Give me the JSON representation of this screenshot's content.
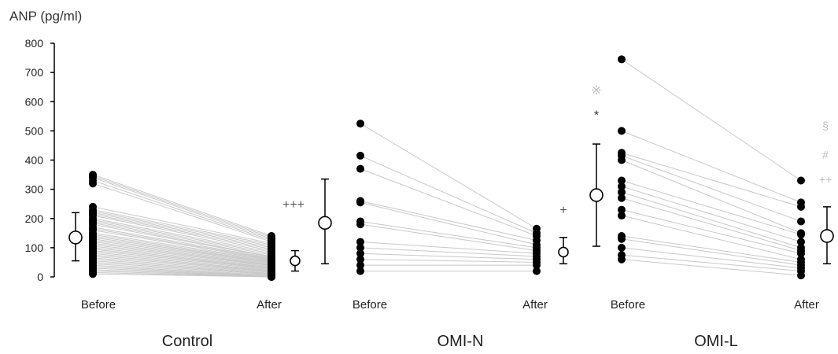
{
  "chart_data": {
    "type": "scatter",
    "ylabel": "ANP (pg/ml)",
    "ylim": [
      0,
      800
    ],
    "yticks": [
      "0",
      "100",
      "200",
      "300",
      "400",
      "500",
      "600",
      "700",
      "800"
    ],
    "grid": false,
    "legend": "none",
    "colors": {
      "ink": "#000000",
      "pair_line": "#c8c8c8",
      "faint_symbol": "#bdbdbd"
    },
    "groups": [
      {
        "name": "Control",
        "labels": {
          "before": "Before",
          "after": "After"
        },
        "before_values": [
          350,
          345,
          340,
          330,
          320,
          240,
          230,
          225,
          220,
          215,
          210,
          200,
          195,
          190,
          185,
          180,
          170,
          165,
          160,
          150,
          145,
          140,
          135,
          130,
          125,
          120,
          115,
          110,
          105,
          100,
          95,
          90,
          85,
          80,
          75,
          70,
          65,
          60,
          55,
          50,
          45,
          40,
          35,
          30,
          25,
          20,
          15,
          10
        ],
        "after_values": [
          140,
          135,
          130,
          125,
          120,
          115,
          110,
          105,
          100,
          95,
          90,
          85,
          80,
          75,
          70,
          68,
          65,
          62,
          60,
          58,
          55,
          52,
          50,
          48,
          45,
          42,
          40,
          38,
          35,
          32,
          30,
          28,
          25,
          22,
          20,
          18,
          15,
          12,
          10,
          8,
          5,
          3,
          2,
          1,
          1,
          0,
          0,
          0
        ],
        "before_summary": {
          "mean": 135,
          "low": 55,
          "high": 220
        },
        "after_summary": {
          "mean": 55,
          "low": 20,
          "high": 90
        },
        "after_mark": "+++"
      },
      {
        "name": "OMI-N",
        "labels": {
          "before": "Before",
          "after": "After"
        },
        "before_values": [
          525,
          415,
          370,
          260,
          255,
          190,
          180,
          120,
          100,
          80,
          60,
          40,
          20
        ],
        "after_values": [
          165,
          150,
          140,
          125,
          110,
          100,
          90,
          80,
          70,
          60,
          50,
          40,
          20
        ],
        "before_summary": {
          "mean": 185,
          "low": 45,
          "high": 335
        },
        "after_summary": {
          "mean": 85,
          "low": 45,
          "high": 135
        },
        "after_mark": "+",
        "before_values_solid": true
      },
      {
        "name": "OMI-L",
        "labels": {
          "before": "Before",
          "after": "After"
        },
        "before_values": [
          745,
          500,
          425,
          415,
          400,
          330,
          310,
          290,
          270,
          230,
          210,
          140,
          130,
          100,
          75,
          60
        ],
        "after_values": [
          330,
          255,
          240,
          190,
          150,
          145,
          120,
          100,
          90,
          80,
          60,
          50,
          40,
          30,
          20,
          5
        ],
        "before_summary": {
          "mean": 280,
          "low": 105,
          "high": 455
        },
        "after_summary": {
          "mean": 140,
          "low": 45,
          "high": 240
        },
        "before_marks": [
          "※",
          "*"
        ],
        "after_marks": [
          "§",
          "#",
          "++"
        ]
      }
    ]
  }
}
